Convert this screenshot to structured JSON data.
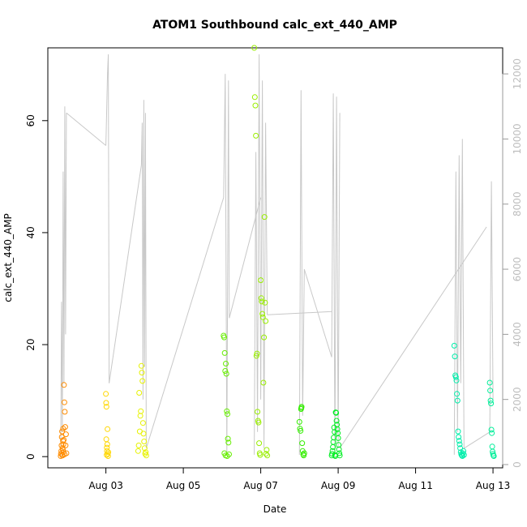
{
  "chart_data": {
    "type": "scatter",
    "title": "ATOM1 Southbound calc_ext_440_AMP",
    "xlabel": "Date",
    "ylabel": "calc_ext_440_AMP",
    "xlim": [
      "2024-08-01T12:00",
      "2024-08-13T06:00"
    ],
    "ylim": [
      -2,
      73
    ],
    "x_ticks": [
      "Aug 03",
      "Aug 05",
      "Aug 07",
      "Aug 09",
      "Aug 11",
      "Aug 13"
    ],
    "y_ticks": [
      0,
      20,
      40,
      60
    ],
    "secondary_axis": {
      "ylim": [
        -100,
        12800
      ],
      "ticks": [
        0,
        2000,
        4000,
        6000,
        8000,
        10000,
        12000
      ],
      "color": "#c8c8c8",
      "series": {
        "segments": [
          {
            "x": [
              "2024-08-01T20:00",
              "2024-08-01T20:30",
              "2024-08-01T21:00",
              "2024-08-01T21:30",
              "2024-08-01T22:00",
              "2024-08-01T22:30",
              "2024-08-01T23:00",
              "2024-08-01T23:30"
            ],
            "y": [
              200,
              5000,
              1000,
              9000,
              2500,
              11000,
              4000,
              10800
            ]
          },
          {
            "x": [
              "2024-08-01T23:30",
              "2024-08-03T00:00"
            ],
            "y": [
              10800,
              9800
            ]
          },
          {
            "x": [
              "2024-08-03T00:00",
              "2024-08-03T01:00",
              "2024-08-03T01:30",
              "2024-08-03T02:00"
            ],
            "y": [
              9800,
              12000,
              12600,
              2500
            ]
          },
          {
            "x": [
              "2024-08-03T02:00",
              "2024-08-03T22:00"
            ],
            "y": [
              2500,
              9200
            ]
          },
          {
            "x": [
              "2024-08-03T22:00",
              "2024-08-03T22:30",
              "2024-08-03T23:00",
              "2024-08-03T23:30",
              "2024-08-04T00:00",
              "2024-08-04T00:30",
              "2024-08-04T01:00"
            ],
            "y": [
              9200,
              10500,
              2000,
              11200,
              3000,
              10800,
              500
            ]
          },
          {
            "x": [
              "2024-08-04T01:00",
              "2024-08-06T01:00"
            ],
            "y": [
              500,
              8200
            ]
          },
          {
            "x": [
              "2024-08-06T01:00",
              "2024-08-06T02:00",
              "2024-08-06T03:00",
              "2024-08-06T04:00",
              "2024-08-06T04:30"
            ],
            "y": [
              8200,
              12000,
              300,
              11800,
              4500
            ]
          },
          {
            "x": [
              "2024-08-06T04:30",
              "2024-08-07T00:00"
            ],
            "y": [
              4500,
              8200
            ]
          },
          {
            "x": [
              "2024-08-06T20:00",
              "2024-08-06T21:00",
              "2024-08-06T22:00",
              "2024-08-06T23:00",
              "2024-08-07T00:00",
              "2024-08-07T01:00",
              "2024-08-07T02:00",
              "2024-08-07T03:00",
              "2024-08-07T04:00"
            ],
            "y": [
              300,
              9600,
              1000,
              12600,
              2000,
              11800,
              500,
              10500,
              4600
            ]
          },
          {
            "x": [
              "2024-08-07T04:00",
              "2024-08-08T20:00"
            ],
            "y": [
              4600,
              4700
            ]
          },
          {
            "x": [
              "2024-08-08T00:00",
              "2024-08-08T01:00",
              "2024-08-08T02:00",
              "2024-08-08T03:00"
            ],
            "y": [
              300,
              11500,
              1500,
              6000
            ]
          },
          {
            "x": [
              "2024-08-08T03:00",
              "2024-08-08T20:00"
            ],
            "y": [
              6000,
              3300
            ]
          },
          {
            "x": [
              "2024-08-08T20:00",
              "2024-08-08T21:00",
              "2024-08-08T22:00",
              "2024-08-08T23:00",
              "2024-08-09T00:00",
              "2024-08-09T01:00"
            ],
            "y": [
              3300,
              11400,
              300,
              11300,
              500,
              10800
            ]
          },
          {
            "x": [
              "2024-08-09T01:00",
              "2024-08-12T20:00"
            ],
            "y": [
              500,
              7300
            ]
          },
          {
            "x": [
              "2024-08-12T00:00",
              "2024-08-12T01:00",
              "2024-08-12T02:00",
              "2024-08-12T03:00",
              "2024-08-12T04:00",
              "2024-08-12T05:00",
              "2024-08-12T06:00"
            ],
            "y": [
              300,
              9000,
              1000,
              9500,
              2500,
              10000,
              500
            ]
          },
          {
            "x": [
              "2024-08-12T06:00",
              "2024-08-12T22:00",
              "2024-08-12T23:00",
              "2024-08-13T00:00"
            ],
            "y": [
              500,
              1000,
              8700,
              2000
            ]
          }
        ]
      }
    },
    "series": [
      {
        "color": "#ff8c00",
        "x": [
          "2024-08-01T20:00",
          "2024-08-01T20:10",
          "2024-08-01T20:20",
          "2024-08-01T20:30",
          "2024-08-01T20:40",
          "2024-08-01T20:50",
          "2024-08-01T21:00",
          "2024-08-01T21:10",
          "2024-08-01T21:20",
          "2024-08-01T21:30",
          "2024-08-01T21:40",
          "2024-08-01T21:50",
          "2024-08-01T22:00",
          "2024-08-01T22:15",
          "2024-08-01T22:30",
          "2024-08-01T22:45",
          "2024-08-01T23:00",
          "2024-08-01T23:15",
          "2024-08-01T23:30",
          "2024-08-01T21:10",
          "2024-08-01T21:20",
          "2024-08-01T22:20",
          "2024-08-01T21:40"
        ],
        "y": [
          0.1,
          0.5,
          1.0,
          2.0,
          3.5,
          4.5,
          0.3,
          1.5,
          2.8,
          5.0,
          0.8,
          3.0,
          12.8,
          9.7,
          8.0,
          5.3,
          2.0,
          4.0,
          0.6,
          0.2,
          1.2,
          0.4,
          2.2
        ]
      },
      {
        "color": "#ffd700",
        "x": [
          "2024-08-03T00:00",
          "2024-08-03T00:10",
          "2024-08-03T00:20",
          "2024-08-03T00:30",
          "2024-08-03T00:40",
          "2024-08-03T00:50",
          "2024-08-03T01:00",
          "2024-08-03T01:10",
          "2024-08-03T01:20",
          "2024-08-03T00:15",
          "2024-08-03T00:35",
          "2024-08-03T01:30"
        ],
        "y": [
          11.2,
          9.6,
          8.9,
          0.3,
          1.0,
          2.2,
          4.9,
          0.5,
          0.1,
          3.1,
          1.6,
          0.8
        ]
      },
      {
        "color": "#e6f200",
        "x": [
          "2024-08-03T20:00",
          "2024-08-03T20:20",
          "2024-08-03T20:40",
          "2024-08-03T21:00",
          "2024-08-03T21:20",
          "2024-08-03T21:40",
          "2024-08-03T22:00",
          "2024-08-03T22:20",
          "2024-08-03T22:40",
          "2024-08-03T23:00",
          "2024-08-03T23:20",
          "2024-08-03T23:40",
          "2024-08-04T00:00",
          "2024-08-04T00:20",
          "2024-08-04T00:40",
          "2024-08-04T01:00"
        ],
        "y": [
          1.0,
          2.0,
          11.4,
          4.5,
          7.3,
          8.1,
          16.2,
          15.0,
          13.5,
          6.0,
          4.1,
          2.7,
          1.5,
          0.5,
          0.8,
          0.2
        ]
      },
      {
        "color": "#66ee00",
        "x": [
          "2024-08-06T01:00",
          "2024-08-06T01:20",
          "2024-08-06T01:40",
          "2024-08-06T02:00",
          "2024-08-06T02:20",
          "2024-08-06T02:40",
          "2024-08-06T03:00",
          "2024-08-06T03:20",
          "2024-08-06T03:40",
          "2024-08-06T04:00",
          "2024-08-06T04:20",
          "2024-08-06T02:10",
          "2024-08-06T03:10",
          "2024-08-06T01:30"
        ],
        "y": [
          21.6,
          21.3,
          18.5,
          15.3,
          16.6,
          14.8,
          8.1,
          7.6,
          3.2,
          2.5,
          0.4,
          0.2,
          0.1,
          0.6
        ]
      },
      {
        "color": "#99ee00",
        "x": [
          "2024-08-06T20:00",
          "2024-08-06T20:20",
          "2024-08-06T20:40",
          "2024-08-06T21:00",
          "2024-08-06T21:20",
          "2024-08-06T21:40",
          "2024-08-06T22:00",
          "2024-08-06T22:20",
          "2024-08-06T22:40",
          "2024-08-06T23:00",
          "2024-08-06T23:20",
          "2024-08-06T23:40",
          "2024-08-07T00:00",
          "2024-08-07T00:20",
          "2024-08-07T00:40",
          "2024-08-07T01:00",
          "2024-08-07T01:20",
          "2024-08-07T01:40",
          "2024-08-07T02:00",
          "2024-08-07T02:20",
          "2024-08-07T02:40",
          "2024-08-07T03:00",
          "2024-08-07T03:20",
          "2024-08-07T03:40",
          "2024-08-07T04:00"
        ],
        "y": [
          73.0,
          64.2,
          62.7,
          57.3,
          18.0,
          18.4,
          8.0,
          6.4,
          6.1,
          2.4,
          0.6,
          0.3,
          31.5,
          28.3,
          27.7,
          25.5,
          24.9,
          13.2,
          21.3,
          42.8,
          27.5,
          24.2,
          0.5,
          1.2,
          0.2
        ]
      },
      {
        "color": "#33ee00",
        "x": [
          "2024-08-08T00:00",
          "2024-08-08T00:20",
          "2024-08-08T00:40",
          "2024-08-08T01:00",
          "2024-08-08T01:20",
          "2024-08-08T01:40",
          "2024-08-08T02:00",
          "2024-08-08T02:20",
          "2024-08-08T02:40",
          "2024-08-08T03:00",
          "2024-08-08T01:10"
        ],
        "y": [
          6.2,
          5.0,
          4.6,
          8.5,
          8.9,
          2.4,
          1.0,
          0.4,
          0.2,
          0.6,
          8.7
        ]
      },
      {
        "color": "#00ee22",
        "x": [
          "2024-08-08T20:00",
          "2024-08-08T20:15",
          "2024-08-08T20:30",
          "2024-08-08T20:45",
          "2024-08-08T21:00",
          "2024-08-08T21:15",
          "2024-08-08T21:30",
          "2024-08-08T21:45",
          "2024-08-08T22:00",
          "2024-08-08T22:15",
          "2024-08-08T22:30",
          "2024-08-08T22:45",
          "2024-08-08T23:00",
          "2024-08-08T23:15",
          "2024-08-08T23:30",
          "2024-08-08T23:45",
          "2024-08-09T00:00",
          "2024-08-09T00:15",
          "2024-08-09T00:30",
          "2024-08-09T00:45",
          "2024-08-09T01:00"
        ],
        "y": [
          0.2,
          0.5,
          1.0,
          1.7,
          2.6,
          3.4,
          5.2,
          4.4,
          0.3,
          0.1,
          7.9,
          7.8,
          6.4,
          5.7,
          4.9,
          4.2,
          3.3,
          2.1,
          1.3,
          0.6,
          0.2
        ]
      },
      {
        "color": "#00eeaa",
        "x": [
          "2024-08-12T00:00",
          "2024-08-12T00:20",
          "2024-08-12T00:40",
          "2024-08-12T01:00",
          "2024-08-12T01:20",
          "2024-08-12T01:40",
          "2024-08-12T02:00",
          "2024-08-12T02:20",
          "2024-08-12T02:40",
          "2024-08-12T03:00",
          "2024-08-12T03:20",
          "2024-08-12T03:40",
          "2024-08-12T04:00",
          "2024-08-12T04:20",
          "2024-08-12T04:40",
          "2024-08-12T05:00",
          "2024-08-12T05:20",
          "2024-08-12T05:40",
          "2024-08-12T06:00"
        ],
        "y": [
          19.8,
          17.9,
          14.5,
          14.2,
          13.6,
          11.2,
          10.0,
          4.5,
          3.5,
          2.8,
          2.2,
          1.5,
          0.8,
          0.4,
          0.2,
          0.1,
          0.6,
          1.0,
          0.3
        ]
      },
      {
        "color": "#00ee99",
        "x": [
          "2024-08-12T22:00",
          "2024-08-12T22:15",
          "2024-08-12T22:30",
          "2024-08-12T22:45",
          "2024-08-12T23:00",
          "2024-08-12T23:15",
          "2024-08-12T23:30",
          "2024-08-12T23:45",
          "2024-08-13T00:00",
          "2024-08-13T00:15",
          "2024-08-13T00:30"
        ],
        "y": [
          13.2,
          11.8,
          10.0,
          9.5,
          4.8,
          4.2,
          1.8,
          0.9,
          0.5,
          0.2,
          0.1
        ]
      }
    ]
  }
}
